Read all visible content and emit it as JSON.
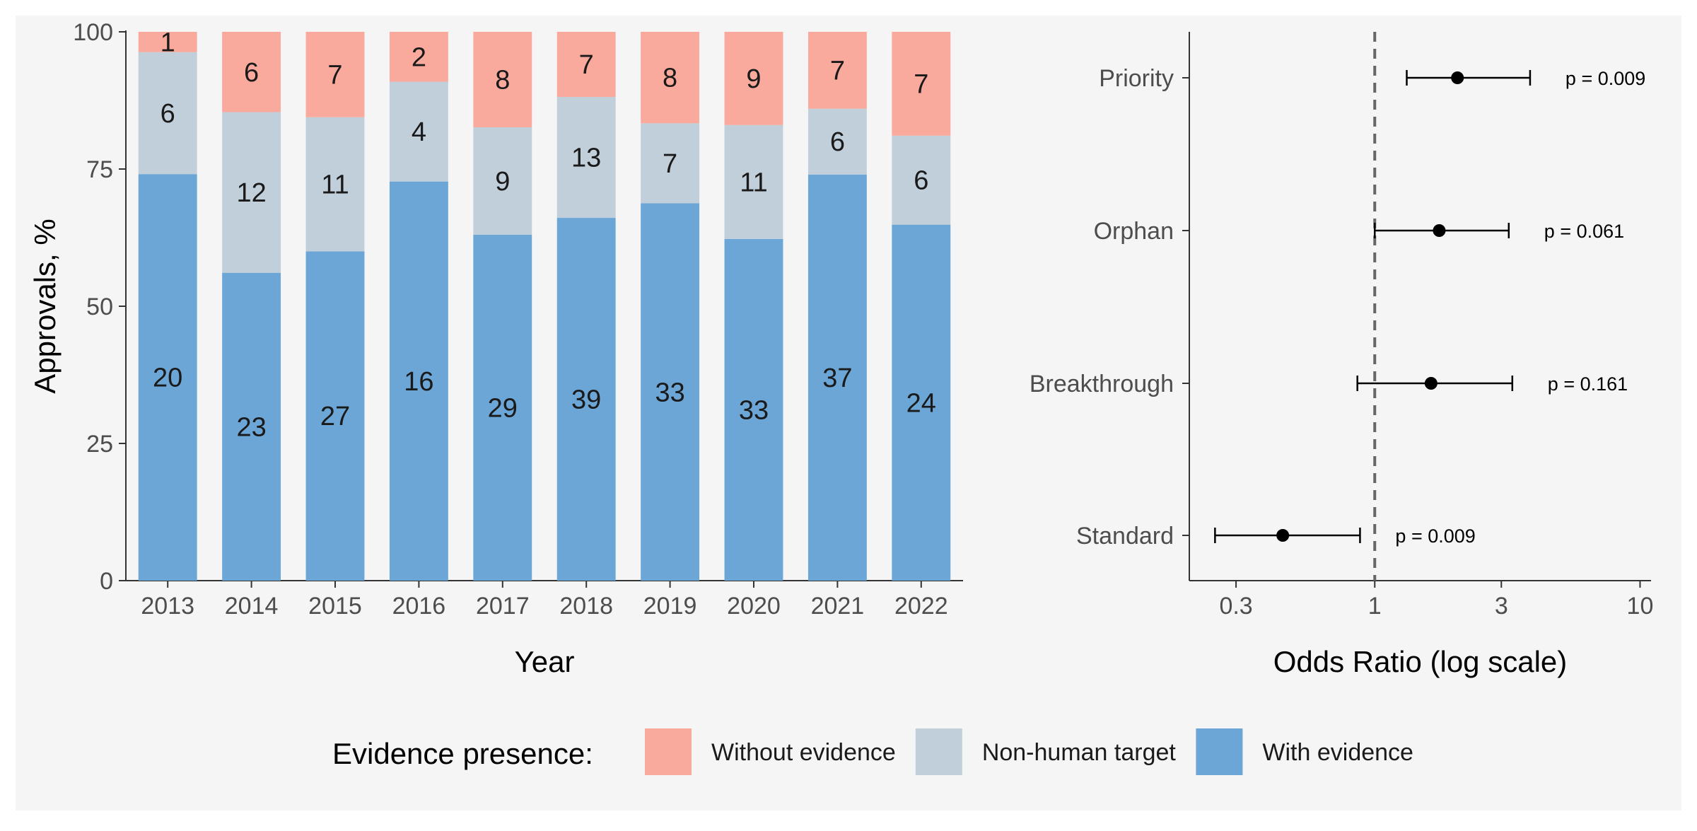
{
  "chart_data": [
    {
      "type": "bar",
      "stacked": true,
      "normalized_percent": true,
      "categories": [
        "2013",
        "2014",
        "2015",
        "2016",
        "2017",
        "2018",
        "2019",
        "2020",
        "2021",
        "2022"
      ],
      "series": [
        {
          "name": "With evidence",
          "color": "#6ba6d6",
          "values": [
            20,
            23,
            27,
            16,
            29,
            39,
            33,
            33,
            37,
            24
          ]
        },
        {
          "name": "Non-human target",
          "color": "#c1cfdb",
          "values": [
            6,
            12,
            11,
            4,
            9,
            13,
            7,
            11,
            6,
            6
          ]
        },
        {
          "name": "Without evidence",
          "color": "#f9aa9c",
          "values": [
            1,
            6,
            7,
            2,
            8,
            7,
            8,
            9,
            7,
            7
          ]
        }
      ],
      "xlabel": "Year",
      "ylabel": "Approvals, %",
      "ylim": [
        0,
        100
      ],
      "yticks": [
        0,
        25,
        50,
        75,
        100
      ],
      "grid": false
    },
    {
      "type": "scatter",
      "subtype": "forest",
      "categories": [
        "Priority",
        "Orphan",
        "Breakthrough",
        "Standard"
      ],
      "estimates": [
        2.05,
        1.75,
        1.63,
        0.45
      ],
      "ci_low": [
        1.32,
        1.0,
        0.86,
        0.25
      ],
      "ci_high": [
        3.85,
        3.2,
        3.3,
        0.88
      ],
      "p_labels": [
        "p = 0.009",
        "p = 0.061",
        "p = 0.161",
        "p = 0.009"
      ],
      "xlabel": "Odds Ratio (log scale)",
      "xscale": "log",
      "xlim": [
        0.2,
        11
      ],
      "xticks": [
        0.3,
        1,
        3,
        10
      ],
      "xtick_labels": [
        "0.3",
        "1",
        "3",
        "10"
      ],
      "reference_line": 1,
      "grid": false
    }
  ],
  "legend": {
    "title": "Evidence presence:",
    "entries": [
      {
        "label": "Without evidence",
        "color": "#f9aa9c"
      },
      {
        "label": "Non-human target",
        "color": "#c1cfdb"
      },
      {
        "label": "With evidence",
        "color": "#6ba6d6"
      }
    ],
    "placement": "bottom"
  },
  "colors": {
    "background": "#f5f5f5",
    "axis": "#333333",
    "point": "#000000",
    "reference_line": "#666666"
  }
}
